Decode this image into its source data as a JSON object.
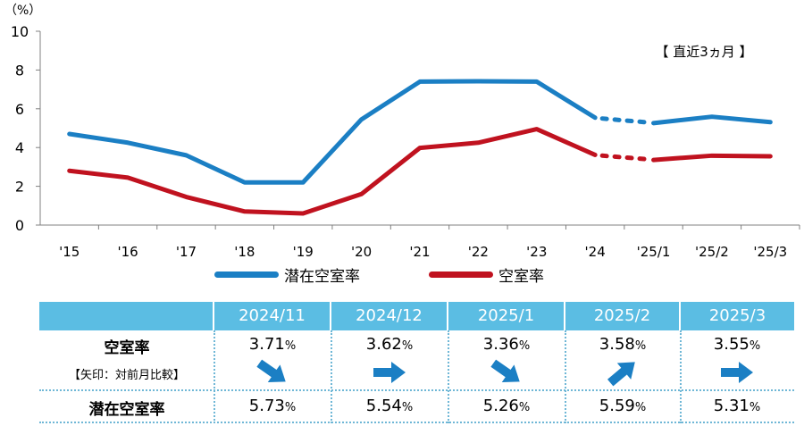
{
  "chart_data": {
    "type": "line",
    "y_unit_label": "（%）",
    "note": "【 直近3ヵ月 】",
    "categories": [
      "'15",
      "'16",
      "'17",
      "'18",
      "'19",
      "'20",
      "'21",
      "'22",
      "'23",
      "'24",
      "'25/1",
      "'25/2",
      "'25/3"
    ],
    "series": [
      {
        "name": "潜在空室率",
        "color": "#1b7fc4",
        "values": [
          4.7,
          4.25,
          3.6,
          2.2,
          2.2,
          5.45,
          7.4,
          7.42,
          7.4,
          5.54,
          5.26,
          5.59,
          5.31
        ]
      },
      {
        "name": "空室率",
        "color": "#c0121f",
        "values": [
          2.8,
          2.45,
          1.45,
          0.7,
          0.6,
          1.6,
          3.98,
          4.25,
          4.95,
          3.62,
          3.36,
          3.58,
          3.55
        ]
      }
    ],
    "ylim": [
      0,
      10
    ],
    "yticks": [
      "0",
      "2",
      "4",
      "6",
      "8",
      "10"
    ],
    "dotted_between": [
      "'24",
      "'25/1"
    ]
  },
  "legend": [
    {
      "label": "潜在空室率",
      "color": "#1b7fc4"
    },
    {
      "label": "空室率",
      "color": "#c0121f"
    }
  ],
  "table": {
    "header_color": "#5bbde3",
    "months": [
      "2024/11",
      "2024/12",
      "2025/1",
      "2025/2",
      "2025/3"
    ],
    "rows": {
      "vacancy_label": "空室率",
      "arrow_note": "【矢印：対前月比較】",
      "potential_label": "潜在空室率"
    },
    "vacancy": [
      "3.71",
      "3.62",
      "3.36",
      "3.58",
      "3.55"
    ],
    "potential": [
      "5.73",
      "5.54",
      "5.26",
      "5.59",
      "5.31"
    ],
    "pct": "%",
    "arrows": [
      "down",
      "flat",
      "down",
      "up",
      "flat"
    ],
    "arrow_color": "#1b7fc4"
  }
}
